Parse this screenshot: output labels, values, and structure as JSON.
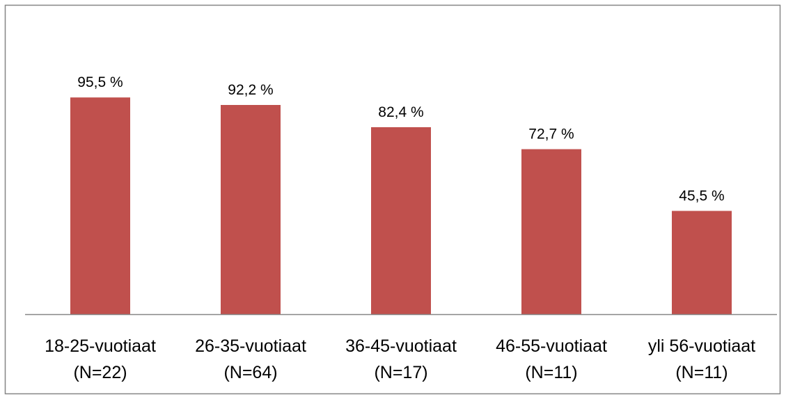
{
  "chart_data": {
    "type": "bar",
    "categories": [
      [
        "18-25-vuotiaat",
        "(N=22)"
      ],
      [
        "26-35-vuotiaat",
        "(N=64)"
      ],
      [
        "36-45-vuotiaat",
        "(N=17)"
      ],
      [
        "46-55-vuotiaat",
        "(N=11)"
      ],
      [
        "yli 56-vuotiaat",
        "(N=11)"
      ]
    ],
    "values": [
      95.5,
      92.2,
      82.4,
      72.7,
      45.5
    ],
    "data_labels": [
      "95,5 %",
      "92,2 %",
      "82,4 %",
      "72,7 %",
      "45,5 %"
    ],
    "title": "",
    "xlabel": "",
    "ylabel": "",
    "ylim": [
      0,
      100
    ],
    "grid": false,
    "legend": "none",
    "bar_color": "#c0504d",
    "frame_color": "#868686",
    "axis_color": "#868686"
  }
}
